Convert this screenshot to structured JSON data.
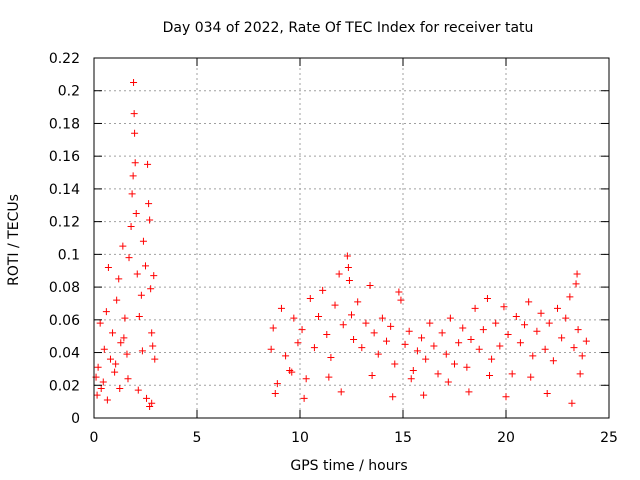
{
  "chart_data": {
    "type": "scatter",
    "title": "Day 034 of 2022, Rate Of TEC Index for receiver tatu",
    "xlabel": "GPS time / hours",
    "ylabel": "ROTI / TECUs",
    "xlim": [
      0,
      25
    ],
    "ylim": [
      0,
      0.22
    ],
    "xticks": [
      "0",
      "5",
      "10",
      "15",
      "20",
      "25"
    ],
    "yticks": [
      "0",
      "0.02",
      "0.04",
      "0.06",
      "0.08",
      "0.1",
      "0.12",
      "0.14",
      "0.16",
      "0.18",
      "0.2",
      "0.22"
    ],
    "grid": true,
    "marker": "+",
    "color": "#ff0000",
    "series": [
      {
        "name": "",
        "points": [
          [
            0.1,
            0.025
          ],
          [
            0.2,
            0.031
          ],
          [
            0.3,
            0.058
          ],
          [
            0.35,
            0.018
          ],
          [
            0.5,
            0.042
          ],
          [
            0.6,
            0.065
          ],
          [
            0.7,
            0.092
          ],
          [
            0.8,
            0.036
          ],
          [
            0.9,
            0.052
          ],
          [
            1.0,
            0.028
          ],
          [
            1.1,
            0.072
          ],
          [
            1.2,
            0.085
          ],
          [
            1.3,
            0.046
          ],
          [
            1.4,
            0.105
          ],
          [
            1.5,
            0.061
          ],
          [
            1.6,
            0.039
          ],
          [
            1.7,
            0.098
          ],
          [
            1.8,
            0.117
          ],
          [
            1.85,
            0.137
          ],
          [
            1.9,
            0.148
          ],
          [
            1.92,
            0.205
          ],
          [
            1.95,
            0.186
          ],
          [
            1.97,
            0.174
          ],
          [
            2.0,
            0.156
          ],
          [
            2.05,
            0.125
          ],
          [
            2.1,
            0.088
          ],
          [
            2.2,
            0.062
          ],
          [
            2.3,
            0.075
          ],
          [
            2.4,
            0.108
          ],
          [
            2.5,
            0.093
          ],
          [
            2.6,
            0.155
          ],
          [
            2.65,
            0.131
          ],
          [
            2.7,
            0.121
          ],
          [
            2.75,
            0.079
          ],
          [
            2.8,
            0.052
          ],
          [
            2.85,
            0.044
          ],
          [
            2.9,
            0.087
          ],
          [
            2.95,
            0.036
          ],
          [
            0.15,
            0.014
          ],
          [
            0.45,
            0.022
          ],
          [
            0.65,
            0.011
          ],
          [
            1.25,
            0.018
          ],
          [
            1.65,
            0.024
          ],
          [
            2.15,
            0.017
          ],
          [
            2.55,
            0.012
          ],
          [
            2.7,
            0.007
          ],
          [
            2.8,
            0.009
          ],
          [
            1.05,
            0.033
          ],
          [
            1.45,
            0.049
          ],
          [
            2.35,
            0.041
          ],
          [
            8.6,
            0.042
          ],
          [
            8.7,
            0.055
          ],
          [
            8.9,
            0.021
          ],
          [
            9.1,
            0.067
          ],
          [
            9.3,
            0.038
          ],
          [
            9.5,
            0.029
          ],
          [
            9.7,
            0.061
          ],
          [
            9.9,
            0.046
          ],
          [
            10.1,
            0.054
          ],
          [
            10.3,
            0.024
          ],
          [
            10.5,
            0.073
          ],
          [
            10.7,
            0.043
          ],
          [
            10.9,
            0.062
          ],
          [
            11.1,
            0.078
          ],
          [
            11.3,
            0.051
          ],
          [
            11.5,
            0.037
          ],
          [
            11.7,
            0.069
          ],
          [
            11.9,
            0.088
          ],
          [
            12.1,
            0.057
          ],
          [
            12.3,
            0.099
          ],
          [
            12.35,
            0.092
          ],
          [
            12.4,
            0.084
          ],
          [
            12.5,
            0.063
          ],
          [
            12.6,
            0.048
          ],
          [
            12.8,
            0.071
          ],
          [
            13.0,
            0.043
          ],
          [
            13.2,
            0.058
          ],
          [
            13.4,
            0.081
          ],
          [
            13.6,
            0.052
          ],
          [
            13.8,
            0.039
          ],
          [
            14.0,
            0.061
          ],
          [
            14.2,
            0.047
          ],
          [
            14.4,
            0.056
          ],
          [
            14.6,
            0.033
          ],
          [
            14.8,
            0.077
          ],
          [
            14.9,
            0.072
          ],
          [
            15.1,
            0.045
          ],
          [
            15.3,
            0.053
          ],
          [
            15.5,
            0.029
          ],
          [
            15.7,
            0.041
          ],
          [
            15.9,
            0.049
          ],
          [
            16.1,
            0.036
          ],
          [
            16.3,
            0.058
          ],
          [
            16.5,
            0.044
          ],
          [
            16.7,
            0.027
          ],
          [
            16.9,
            0.052
          ],
          [
            17.1,
            0.039
          ],
          [
            17.3,
            0.061
          ],
          [
            17.5,
            0.033
          ],
          [
            17.7,
            0.046
          ],
          [
            17.9,
            0.055
          ],
          [
            18.1,
            0.031
          ],
          [
            18.3,
            0.048
          ],
          [
            18.5,
            0.067
          ],
          [
            18.7,
            0.042
          ],
          [
            18.9,
            0.054
          ],
          [
            19.1,
            0.073
          ],
          [
            19.3,
            0.036
          ],
          [
            19.5,
            0.058
          ],
          [
            19.7,
            0.044
          ],
          [
            19.9,
            0.068
          ],
          [
            20.1,
            0.051
          ],
          [
            20.3,
            0.027
          ],
          [
            20.5,
            0.062
          ],
          [
            20.7,
            0.046
          ],
          [
            20.9,
            0.057
          ],
          [
            21.1,
            0.071
          ],
          [
            21.3,
            0.038
          ],
          [
            21.5,
            0.053
          ],
          [
            21.7,
            0.064
          ],
          [
            21.9,
            0.042
          ],
          [
            22.1,
            0.058
          ],
          [
            22.3,
            0.035
          ],
          [
            22.5,
            0.067
          ],
          [
            22.7,
            0.049
          ],
          [
            22.9,
            0.061
          ],
          [
            23.1,
            0.074
          ],
          [
            23.3,
            0.043
          ],
          [
            23.4,
            0.082
          ],
          [
            23.45,
            0.088
          ],
          [
            23.5,
            0.054
          ],
          [
            23.7,
            0.038
          ],
          [
            23.9,
            0.047
          ],
          [
            8.8,
            0.015
          ],
          [
            10.2,
            0.012
          ],
          [
            12.0,
            0.016
          ],
          [
            14.5,
            0.013
          ],
          [
            16.0,
            0.014
          ],
          [
            18.2,
            0.016
          ],
          [
            20.0,
            0.013
          ],
          [
            22.0,
            0.015
          ],
          [
            23.2,
            0.009
          ],
          [
            9.6,
            0.028
          ],
          [
            11.4,
            0.025
          ],
          [
            13.5,
            0.026
          ],
          [
            15.4,
            0.024
          ],
          [
            17.2,
            0.022
          ],
          [
            19.2,
            0.026
          ],
          [
            21.2,
            0.025
          ],
          [
            23.6,
            0.027
          ]
        ]
      }
    ]
  }
}
